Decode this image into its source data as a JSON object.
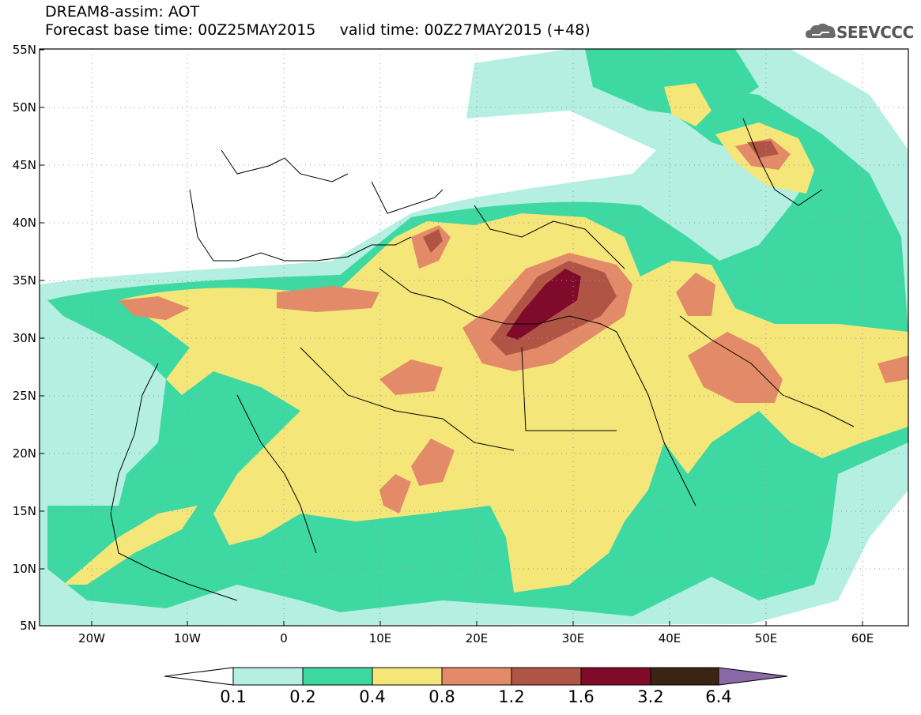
{
  "header": {
    "title_line1": "DREAM8-assim: AOT",
    "title_line2": "Forecast base time: 00Z25MAY2015     valid time: 00Z27MAY2015 (+48)",
    "logo_text": "SEEVCCC"
  },
  "map": {
    "type": "filled-contour-map",
    "variable": "AOT",
    "lon_range": [
      -25,
      65
    ],
    "lat_range": [
      5,
      55
    ],
    "lat_ticks": [
      "5N",
      "10N",
      "15N",
      "20N",
      "25N",
      "30N",
      "35N",
      "40N",
      "45N",
      "50N",
      "55N"
    ],
    "lon_ticks": [
      "20W",
      "10W",
      "0",
      "10E",
      "20E",
      "30E",
      "40E",
      "50E",
      "60E"
    ],
    "grid": "dotted"
  },
  "colorbar": {
    "levels": [
      "0.1",
      "0.2",
      "0.4",
      "0.8",
      "1.2",
      "1.6",
      "3.2",
      "6.4"
    ],
    "colors": [
      "#ffffff",
      "#b4efe2",
      "#3ed9a2",
      "#f5e67a",
      "#e38b68",
      "#b05545",
      "#7f0a2a",
      "#3b2414",
      "#8b68a8"
    ]
  }
}
